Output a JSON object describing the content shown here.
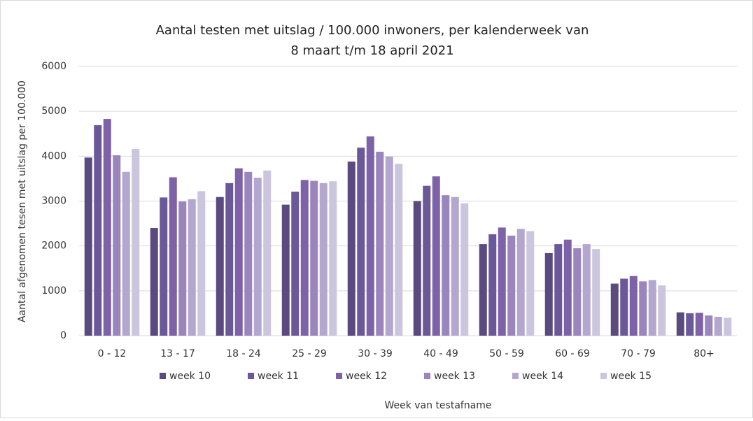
{
  "chart_data": {
    "type": "bar",
    "title": [
      "Aantal testen met uitslag / 100.000 inwoners, per kalenderweek van",
      "8 maart t/m 18 april 2021"
    ],
    "y_label": "Aantal afgenomen tesen met uitslag per 100.000",
    "x_label": "Week van testafname",
    "categories": [
      "0 - 12",
      "13 - 17",
      "18 - 24",
      "25 - 29",
      "30 - 39",
      "40 - 49",
      "50 - 59",
      "60 - 69",
      "70 - 79",
      "80+"
    ],
    "series": [
      {
        "name": "week 10",
        "color": "#5a4a7f",
        "values": [
          3970,
          2400,
          3090,
          2920,
          3880,
          3000,
          2040,
          1840,
          1160,
          520
        ]
      },
      {
        "name": "week 11",
        "color": "#6b5899",
        "values": [
          4690,
          3080,
          3400,
          3210,
          4190,
          3340,
          2260,
          2040,
          1270,
          500
        ]
      },
      {
        "name": "week 12",
        "color": "#7d62a8",
        "values": [
          4830,
          3530,
          3730,
          3470,
          4440,
          3550,
          2410,
          2140,
          1330,
          510
        ]
      },
      {
        "name": "week 13",
        "color": "#9a86bd",
        "values": [
          4020,
          2990,
          3650,
          3450,
          4100,
          3130,
          2230,
          1950,
          1210,
          450
        ]
      },
      {
        "name": "week 14",
        "color": "#b3a7cf",
        "values": [
          3650,
          3040,
          3520,
          3400,
          3990,
          3090,
          2380,
          2040,
          1240,
          420
        ]
      },
      {
        "name": "week 15",
        "color": "#cbc5de",
        "values": [
          4160,
          3220,
          3680,
          3440,
          3830,
          2950,
          2330,
          1930,
          1120,
          400
        ]
      }
    ],
    "ylim": [
      0,
      6000
    ],
    "yticks": [
      0,
      1000,
      2000,
      3000,
      4000,
      5000,
      6000
    ],
    "grid": true,
    "legend": "bottom"
  }
}
